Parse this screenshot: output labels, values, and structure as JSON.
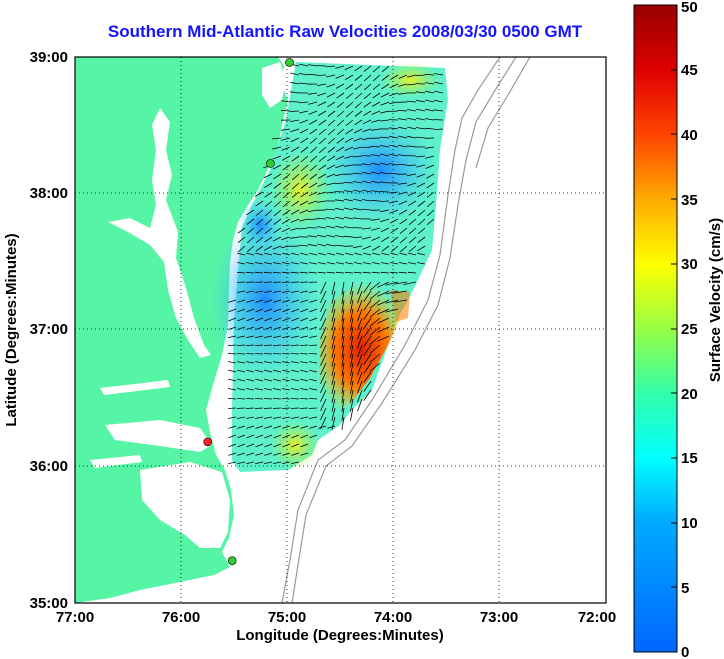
{
  "title": "Southern Mid-Atlantic Raw Velocities 2008/03/30 0500 GMT",
  "map": {
    "lon_range": [
      -77,
      -72
    ],
    "lat_range": [
      35,
      39
    ],
    "x_ticks": [
      "77:00",
      "76:00",
      "75:00",
      "74:00",
      "73:00",
      "72:00"
    ],
    "y_ticks": [
      "35:00",
      "36:00",
      "37:00",
      "38:00",
      "39:00"
    ],
    "xlabel": "Longitude (Degrees:Minutes)",
    "ylabel": "Latitude (Degrees:Minutes)",
    "grid": true,
    "land_color": "#55f5a5",
    "stations": [
      {
        "lon": -74.98,
        "lat": 38.96,
        "color": "#33cc33"
      },
      {
        "lon": -75.16,
        "lat": 38.22,
        "color": "#33cc33"
      },
      {
        "lon": -75.75,
        "lat": 36.18,
        "color": "#ff2020"
      },
      {
        "lon": -75.52,
        "lat": 35.31,
        "color": "#33cc33"
      }
    ]
  },
  "colorbar": {
    "label": "Surface Velocity (cm/s)",
    "ticks": [
      "0",
      "5",
      "10",
      "15",
      "20",
      "25",
      "30",
      "35",
      "40",
      "45",
      "50"
    ],
    "range": [
      0,
      50
    ]
  }
}
